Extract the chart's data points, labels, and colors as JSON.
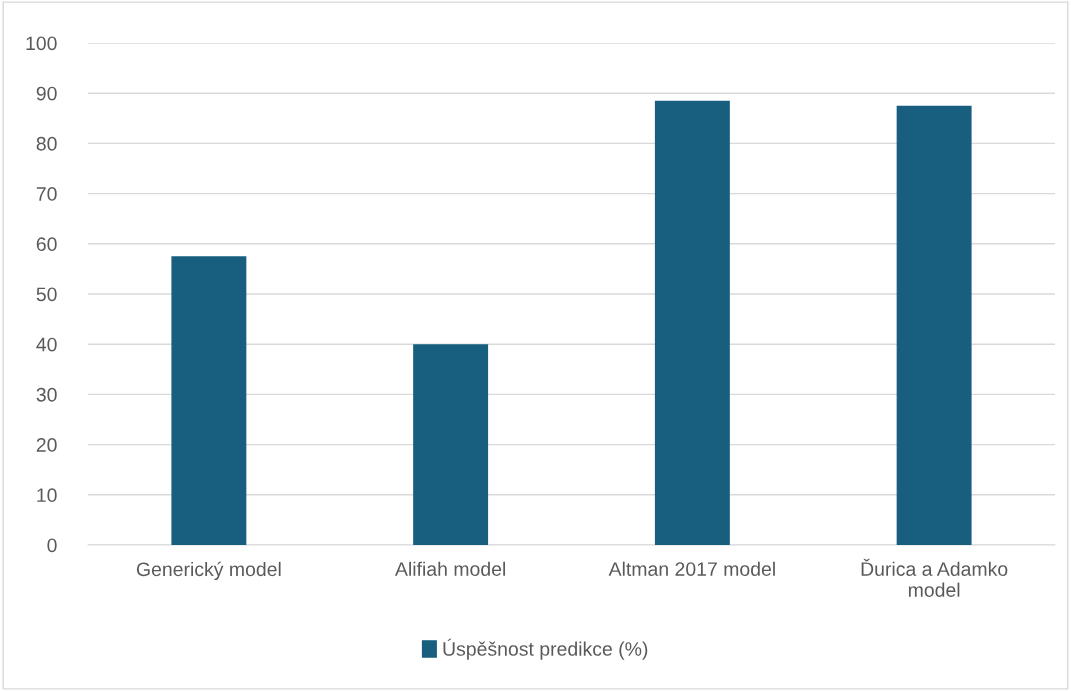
{
  "chart_data": {
    "type": "bar",
    "categories": [
      "Generický model",
      "Alifiah model",
      "Altman 2017 model",
      "Ďurica a Adamko\nmodel"
    ],
    "series": [
      {
        "name": "Úspěšnost predikce (%)",
        "color": "#175e7f",
        "values": [
          57.5,
          40,
          88.5,
          87.5
        ]
      }
    ],
    "ylim": [
      0,
      100
    ],
    "yticks": [
      0,
      10,
      20,
      30,
      40,
      50,
      60,
      70,
      80,
      90,
      100
    ],
    "grid": "y",
    "legend": "bottom"
  }
}
